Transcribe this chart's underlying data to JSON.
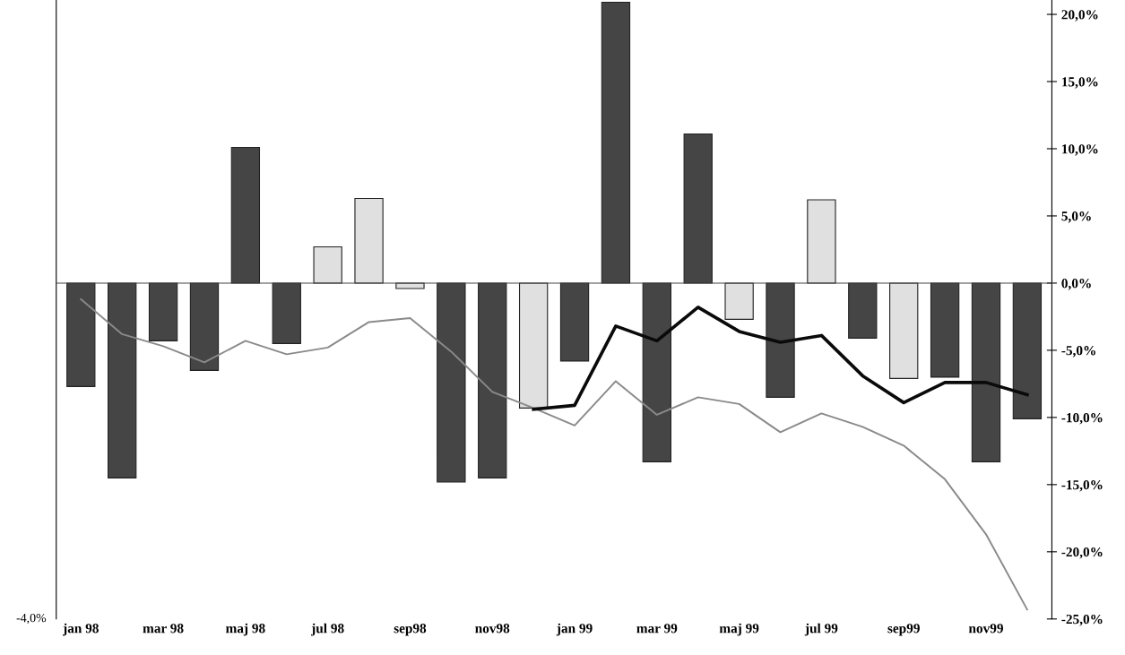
{
  "chart_data": {
    "type": "bar",
    "categories": [
      "jan 98",
      null,
      "mar 98",
      null,
      "maj 98",
      null,
      "jul 98",
      null,
      "sep98",
      null,
      "nov98",
      null,
      "jan 99",
      null,
      "mar 99",
      null,
      "maj 99",
      null,
      "jul 99",
      null,
      "sep99",
      null,
      "nov99",
      null
    ],
    "series": [
      {
        "colors": [
          "#454545",
          "#454545",
          "#454545",
          "#454545",
          "#454545",
          "#454545",
          "#e0e0e0",
          "#e0e0e0",
          "#e0e0e0",
          "#454545",
          "#454545",
          "#e0e0e0",
          "#454545",
          "#454545",
          "#454545",
          "#454545",
          "#e0e0e0",
          "#454545",
          "#e0e0e0",
          "#454545",
          "#e0e0e0",
          "#454545",
          "#454545",
          "#454545"
        ],
        "values": [
          -7.7,
          -14.5,
          -4.3,
          -6.5,
          10.1,
          -4.5,
          2.7,
          6.3,
          -0.4,
          -14.8,
          -14.5,
          -9.3,
          -5.8,
          20.9,
          -13.3,
          11.1,
          -2.7,
          -8.5,
          6.2,
          -4.1,
          -7.1,
          -7.0,
          -13.3,
          -10.1
        ]
      },
      {
        "type": "line",
        "color": "#8a8a8a",
        "values": [
          -1.2,
          -3.8,
          -4.7,
          -5.9,
          -4.3,
          -5.3,
          -4.8,
          -2.9,
          -2.6,
          -5.1,
          -8.1,
          -9.3,
          -10.6,
          -7.3,
          -9.8,
          -8.5,
          -9.0,
          -11.1,
          -9.7,
          -10.7,
          -12.1,
          -14.6,
          -18.7,
          -24.3
        ]
      },
      {
        "type": "line",
        "color": "#0a0a0a",
        "values": [
          null,
          null,
          null,
          null,
          null,
          null,
          null,
          null,
          null,
          null,
          null,
          -9.4,
          -9.1,
          -3.2,
          -4.3,
          -1.8,
          -3.6,
          -4.4,
          -3.9,
          -6.9,
          -8.9,
          -7.4,
          -7.4,
          -8.3
        ]
      }
    ],
    "ylim": [
      -25,
      21.07
    ],
    "yticks": [
      {
        "value": -25,
        "label": "-25,0%"
      },
      {
        "value": -20,
        "label": "-20,0%"
      },
      {
        "value": -15,
        "label": "-15,0%"
      },
      {
        "value": -10,
        "label": "-10,0%"
      },
      {
        "value": -5,
        "label": "-5,0%"
      },
      {
        "value": 0,
        "label": "0,0%"
      },
      {
        "value": 5,
        "label": "5,0%"
      },
      {
        "value": 10,
        "label": "10,0%"
      },
      {
        "value": 15,
        "label": "15,0%"
      },
      {
        "value": 20,
        "label": "20,0%"
      }
    ],
    "annotations": [
      "-4,0%"
    ],
    "legend": false,
    "marker": "none",
    "line_style": "solid"
  }
}
